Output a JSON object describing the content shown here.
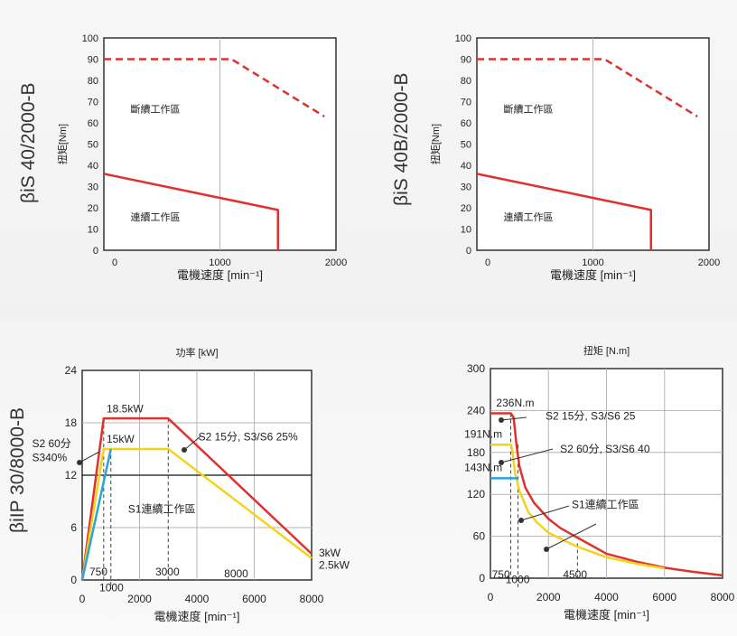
{
  "colors": {
    "red": "#e0312f",
    "yellow": "#f5d21b",
    "blue": "#2aa4dc",
    "grid": "#b5b5b5",
    "frame": "#333333"
  },
  "chart_data": [
    {
      "id": "c1",
      "type": "line",
      "model": "βiS 40/2000-B",
      "ylabel": "扭矩[Nm]",
      "xlabel": "電機速度 [min⁻¹]",
      "xlim": [
        0,
        2000
      ],
      "ylim": [
        0,
        100
      ],
      "xticks": [
        0,
        1000,
        2000
      ],
      "yticks": [
        0,
        10,
        20,
        30,
        40,
        50,
        60,
        70,
        80,
        90,
        100
      ],
      "xgrid": [
        1000
      ],
      "ygrid": [],
      "series": [
        {
          "name": "intermittent",
          "color": "red",
          "dash": true,
          "points": [
            [
              0,
              90
            ],
            [
              1100,
              90
            ],
            [
              1900,
              63
            ]
          ]
        },
        {
          "name": "continuous",
          "color": "red",
          "dash": false,
          "points": [
            [
              0,
              36
            ],
            [
              1500,
              19
            ],
            [
              1500,
              0
            ]
          ]
        }
      ],
      "annotations": [
        {
          "text": "斷續工作區",
          "x": 230,
          "y": 65
        },
        {
          "text": "連續工作區",
          "x": 230,
          "y": 14
        }
      ]
    },
    {
      "id": "c2",
      "type": "line",
      "model": "βiS 40B/2000-B",
      "ylabel": "扭矩[Nm]",
      "xlabel": "電機速度 [min⁻¹]",
      "xlim": [
        0,
        2000
      ],
      "ylim": [
        0,
        100
      ],
      "xticks": [
        0,
        1000,
        2000
      ],
      "yticks": [
        0,
        10,
        20,
        30,
        40,
        50,
        60,
        70,
        80,
        90,
        100
      ],
      "xgrid": [
        1000
      ],
      "ygrid": [],
      "series": [
        {
          "name": "intermittent",
          "color": "red",
          "dash": true,
          "points": [
            [
              0,
              90
            ],
            [
              1100,
              90
            ],
            [
              1900,
              63
            ]
          ]
        },
        {
          "name": "continuous",
          "color": "red",
          "dash": false,
          "points": [
            [
              0,
              36
            ],
            [
              1500,
              19
            ],
            [
              1500,
              0
            ]
          ]
        }
      ],
      "annotations": [
        {
          "text": "斷續工作區",
          "x": 230,
          "y": 65
        },
        {
          "text": "連續工作區",
          "x": 230,
          "y": 14
        }
      ]
    },
    {
      "id": "c3",
      "type": "line",
      "model": "βiIP 30/8000-B",
      "title": "功率 [kW]",
      "xlabel": "電機速度 [min⁻¹]",
      "xlim": [
        0,
        8000
      ],
      "ylim": [
        0,
        24
      ],
      "xticks": [
        0,
        2000,
        4000,
        6000,
        8000
      ],
      "yticks": [
        0,
        6,
        12,
        18,
        24
      ],
      "xgrid": [
        2000,
        4000,
        6000
      ],
      "ygrid": [
        6,
        18
      ],
      "hline": 12,
      "series": [
        {
          "name": "S2 15分, S3/S6 25%",
          "color": "red",
          "points": [
            [
              0,
              0
            ],
            [
              750,
              18.5
            ],
            [
              3000,
              18.5
            ],
            [
              8000,
              3
            ]
          ]
        },
        {
          "name": "S2 60分 S340%",
          "color": "yellow",
          "points": [
            [
              0,
              0
            ],
            [
              750,
              15
            ],
            [
              3000,
              15
            ],
            [
              8000,
              2.5
            ]
          ]
        },
        {
          "name": "S1連續工作區",
          "color": "blue",
          "points": [
            [
              0,
              0
            ],
            [
              1000,
              15
            ]
          ]
        }
      ],
      "vdash": [
        [
          750,
          18.5
        ],
        [
          1000,
          15
        ],
        [
          3000,
          18.5
        ]
      ],
      "annotations": [
        {
          "text": "18.5kW",
          "x": 850,
          "y": 19.2
        },
        {
          "text": "15kW",
          "x": 850,
          "y": 15.7
        },
        {
          "text": "S2 60分",
          "x": -1750,
          "y": 15.2
        },
        {
          "text": "S340%",
          "x": -1750,
          "y": 13.6
        },
        {
          "text": "S2 15分, S3/S6 25%",
          "x": 4050,
          "y": 16
        },
        {
          "text": "S1連續工作區",
          "x": 1600,
          "y": 7.7
        },
        {
          "text": "3kW",
          "x": 8250,
          "y": 2.7
        },
        {
          "text": "2.5kW",
          "x": 8250,
          "y": 1.3
        },
        {
          "text": "750",
          "x": 250,
          "y": 0.5
        },
        {
          "text": "1000",
          "x": 600,
          "y": -1.3
        },
        {
          "text": "3000",
          "x": 2550,
          "y": 0.5
        },
        {
          "text": "8000",
          "x": 4950,
          "y": 0.3
        }
      ]
    },
    {
      "id": "c4",
      "type": "line",
      "title": "扭矩 [N.m]",
      "xlabel": "電機速度 [min⁻¹]",
      "xlim": [
        0,
        8000
      ],
      "ylim": [
        0,
        300
      ],
      "xticks": [
        0,
        2000,
        4000,
        6000,
        8000
      ],
      "yticks": [
        0,
        60,
        120,
        180,
        240,
        300
      ],
      "xgrid": [
        2000,
        4000,
        6000
      ],
      "ygrid": [
        60,
        120,
        180,
        240
      ],
      "series": [
        {
          "name": "S2 15分, S3/S6 25",
          "color": "red",
          "points": [
            [
              0,
              236
            ],
            [
              700,
              236
            ],
            [
              800,
              230
            ],
            [
              900,
              190
            ],
            [
              1000,
              160
            ],
            [
              1200,
              130
            ],
            [
              1500,
              108
            ],
            [
              2000,
              85
            ],
            [
              2400,
              72
            ],
            [
              3000,
              58
            ],
            [
              4000,
              35
            ],
            [
              5000,
              24
            ],
            [
              6000,
              15
            ],
            [
              7000,
              9
            ],
            [
              8000,
              4
            ]
          ]
        },
        {
          "name": "S2 60分, S3/S6 40",
          "color": "yellow",
          "points": [
            [
              0,
              191
            ],
            [
              700,
              191
            ],
            [
              750,
              185
            ],
            [
              850,
              150
            ],
            [
              1000,
              125
            ],
            [
              1300,
              95
            ],
            [
              1600,
              80
            ],
            [
              2000,
              65
            ],
            [
              3000,
              45
            ],
            [
              4000,
              30
            ],
            [
              5000,
              21
            ],
            [
              6000,
              14
            ]
          ]
        },
        {
          "name": "S1連續工作區",
          "color": "blue",
          "points": [
            [
              0,
              143
            ],
            [
              950,
              143
            ]
          ]
        }
      ],
      "vdash": [
        [
          700,
          236
        ],
        [
          950,
          191
        ],
        [
          3000,
          50
        ]
      ],
      "annotations": [
        {
          "text": "236N.m",
          "x": 200,
          "y": 246
        },
        {
          "text": "191N.m",
          "x": -900,
          "y": 201
        },
        {
          "text": "143N.m",
          "x": -900,
          "y": 153
        },
        {
          "text": "S2 15分, S3/S6 25",
          "x": 1900,
          "y": 227
        },
        {
          "text": "S2 60分, S3/S6 40",
          "x": 2400,
          "y": 180
        },
        {
          "text": "S1連續工作區",
          "x": 2800,
          "y": 100
        },
        {
          "text": "750",
          "x": 50,
          "y": 0
        },
        {
          "text": "1000",
          "x": 520,
          "y": -7
        },
        {
          "text": "4500",
          "x": 2500,
          "y": 0
        }
      ]
    }
  ]
}
